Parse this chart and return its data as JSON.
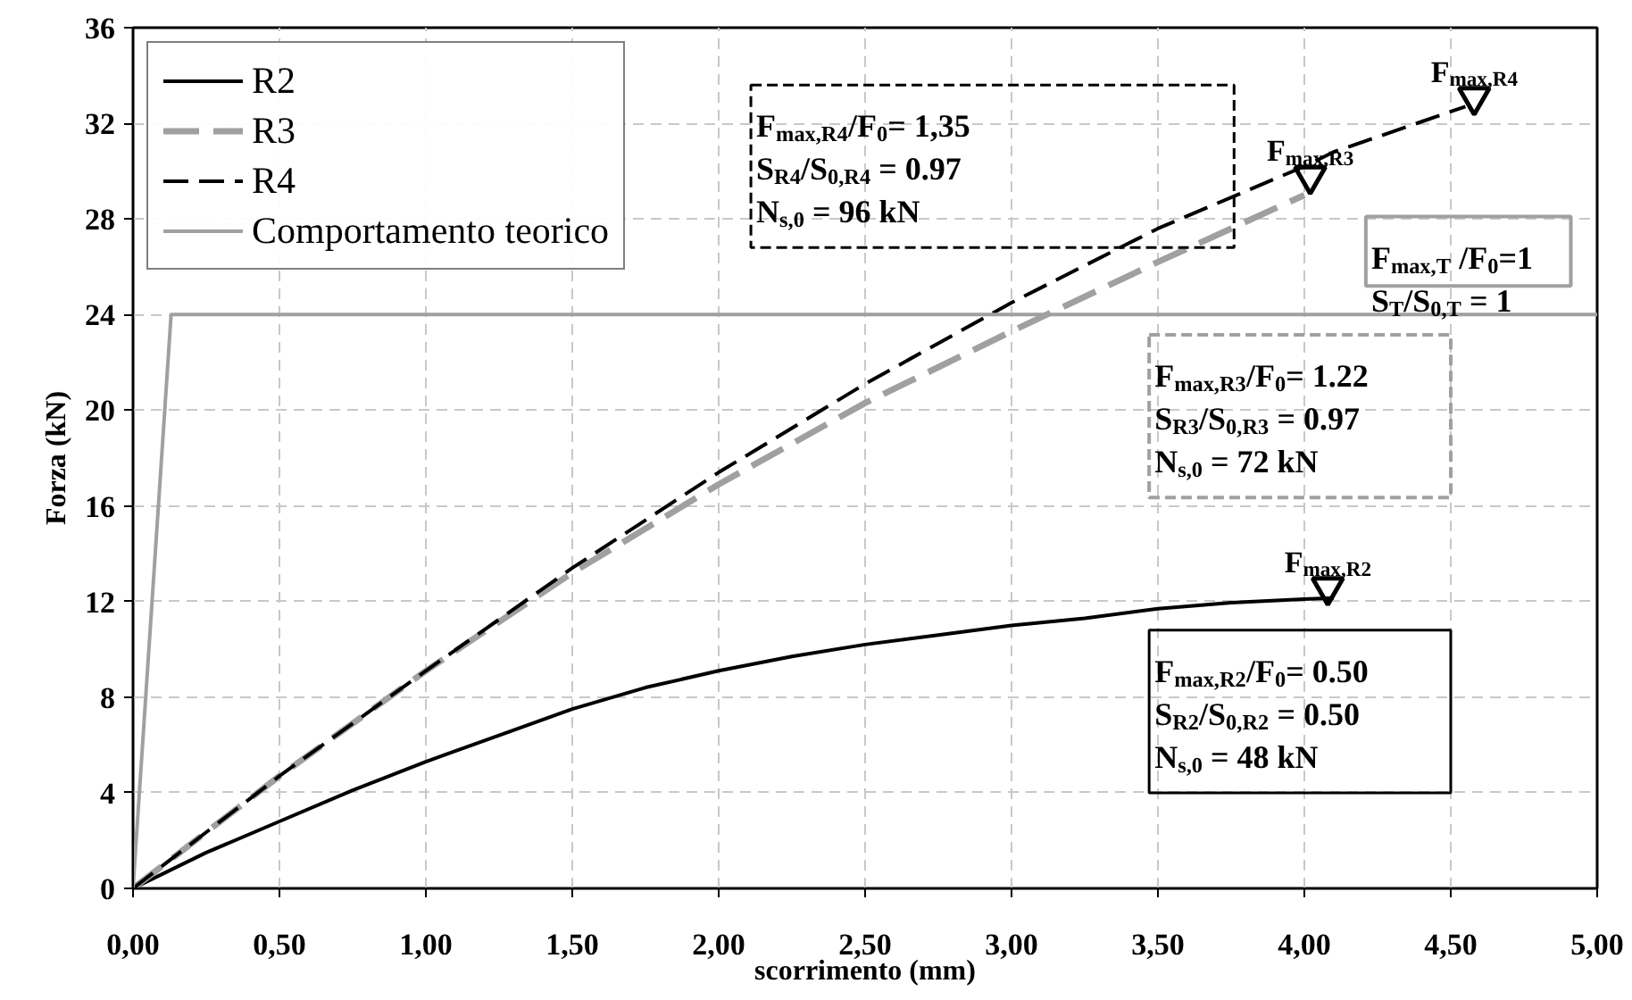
{
  "chart_data": {
    "type": "line",
    "xlabel": "scorrimento (mm)",
    "ylabel": "Forza (kN)",
    "series": [
      {
        "name": "R2",
        "color": "#000000",
        "line_style": "solid",
        "x": [
          0,
          0.25,
          0.5,
          0.75,
          1.0,
          1.25,
          1.5,
          1.75,
          2.0,
          2.25,
          2.5,
          2.75,
          3.0,
          3.25,
          3.5,
          3.75,
          4.0,
          4.1
        ],
        "values": [
          0,
          1.5,
          2.8,
          4.1,
          5.3,
          6.4,
          7.5,
          8.4,
          9.1,
          9.7,
          10.2,
          10.6,
          11.0,
          11.3,
          11.7,
          11.95,
          12.1,
          12.15
        ]
      },
      {
        "name": "R3",
        "color": "#a0a0a0",
        "line_style": "dashed",
        "x": [
          0,
          0.5,
          1.0,
          1.5,
          2.0,
          2.5,
          3.0,
          3.5,
          4.0
        ],
        "values": [
          0,
          4.7,
          9.1,
          13.2,
          16.9,
          20.3,
          23.3,
          26.2,
          29.0
        ]
      },
      {
        "name": "R4",
        "color": "#000000",
        "line_style": "dashed",
        "x": [
          0,
          0.5,
          1.0,
          1.5,
          2.0,
          2.5,
          3.0,
          3.5,
          4.0,
          4.1,
          4.55
        ],
        "values": [
          0,
          4.7,
          9.1,
          13.4,
          17.4,
          21.1,
          24.5,
          27.6,
          30.2,
          30.8,
          32.7
        ]
      },
      {
        "name": "Comportamento teorico",
        "color": "#a0a0a0",
        "line_style": "solid",
        "x": [
          0,
          0.13,
          5.0
        ],
        "values": [
          0,
          24,
          24
        ]
      },
      {
        "type": "scatter",
        "color": "#000000",
        "marker": "triangle",
        "x": [
          4.58,
          4.02,
          4.08
        ],
        "values": [
          33.1,
          29.8,
          12.6
        ]
      }
    ],
    "xlim": [
      0,
      5
    ],
    "ylim": [
      0,
      36
    ],
    "xticks": [
      {
        "value": 0,
        "label": "0,00"
      },
      {
        "value": 0.5,
        "label": "0,50"
      },
      {
        "value": 1,
        "label": "1,00"
      },
      {
        "value": 1.5,
        "label": "1,50"
      },
      {
        "value": 2,
        "label": "2,00"
      },
      {
        "value": 2.5,
        "label": "2,50"
      },
      {
        "value": 3,
        "label": "3,00"
      },
      {
        "value": 3.5,
        "label": "3,50"
      },
      {
        "value": 4,
        "label": "4,00"
      },
      {
        "value": 4.5,
        "label": "4,50"
      },
      {
        "value": 5,
        "label": "5,00"
      }
    ],
    "yticks": [
      0,
      4,
      8,
      12,
      16,
      20,
      24,
      28,
      32,
      36
    ],
    "grid": true,
    "legend": "top left",
    "marker": "none",
    "annotations": [
      "F$_{max,R4}$/F$_{0}$= 1,35\nS$_{R4}$/S$_{0,R4}$ = 0.97\nN$_{s,0}$ = 96 kN",
      "F$_{max,T}$ /F$_{0}$=1\nS$_{T}$/S$_{0,T}$ = 1",
      "F$_{max,R3}$/F$_{0}$= 1.22\nS$_{R3}$/S$_{0,R3}$ = 0.97\nN$_{s,0}$ = 72 kN",
      "F$_{max,R2}$/F$_{0}$= 0.50\nS$_{R2}$/S$_{0,R2}$ = 0.50\nN$_{s,0}$ = 48 kN",
      {
        "text": "F$_{max,R4}$",
        "x": 4.58,
        "y": 33.1
      },
      {
        "text": "F$_{max,R3}$",
        "x": 4.02,
        "y": 29.8
      },
      {
        "text": "F$_{max,R2}$",
        "x": 4.08,
        "y": 12.6
      }
    ]
  }
}
